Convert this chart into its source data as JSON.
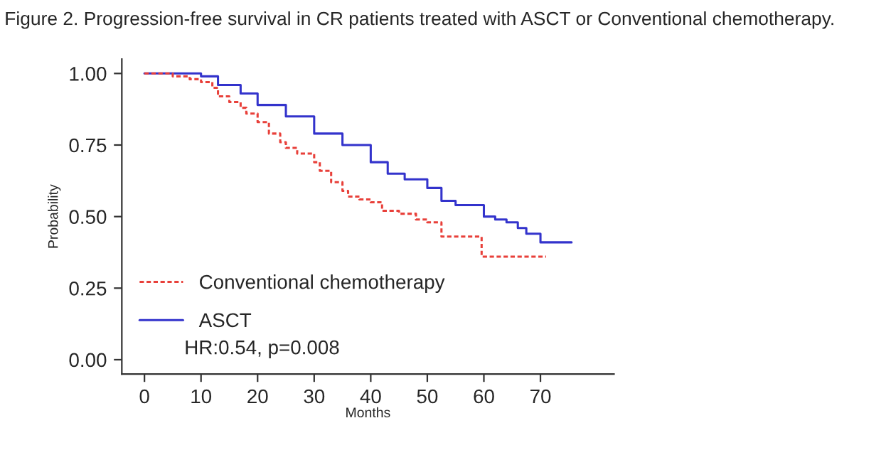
{
  "chart_data": {
    "type": "step",
    "title": "Figure 2. Progression-free survival in CR patients treated with ASCT or Conventional chemotherapy.",
    "xlabel": "Months",
    "ylabel": "Probability",
    "series": [
      {
        "name": "Conventional chemotherapy",
        "color": "#e8403a",
        "line_style": "dashed",
        "x": [
          0,
          5,
          8,
          10,
          12,
          13,
          15,
          17,
          18,
          20,
          22,
          24,
          25,
          27,
          30,
          31,
          33,
          35,
          36,
          38,
          40,
          42,
          45,
          48,
          50,
          52.5,
          59.6,
          71
        ],
        "values": [
          1.0,
          0.99,
          0.98,
          0.97,
          0.95,
          0.92,
          0.9,
          0.88,
          0.86,
          0.83,
          0.79,
          0.76,
          0.74,
          0.72,
          0.69,
          0.66,
          0.62,
          0.59,
          0.57,
          0.56,
          0.55,
          0.52,
          0.51,
          0.49,
          0.48,
          0.43,
          0.36,
          0.36
        ]
      },
      {
        "name": "ASCT",
        "color": "#3333cc",
        "line_style": "solid",
        "x": [
          0,
          7,
          10,
          13,
          17,
          20,
          25,
          30,
          35,
          40,
          43,
          46,
          50,
          52.5,
          55,
          60,
          62,
          64,
          66,
          67.5,
          70,
          75.5
        ],
        "values": [
          1.0,
          1.0,
          0.99,
          0.96,
          0.93,
          0.89,
          0.85,
          0.79,
          0.75,
          0.69,
          0.65,
          0.63,
          0.6,
          0.555,
          0.54,
          0.5,
          0.49,
          0.48,
          0.46,
          0.44,
          0.41,
          0.41
        ]
      }
    ],
    "xlim": [
      -4,
      83
    ],
    "xticks": [
      0,
      10,
      20,
      30,
      40,
      50,
      60,
      70
    ],
    "ylim": [
      -0.05,
      1.05
    ],
    "yticks": [
      {
        "value": 0,
        "label": "0.00"
      },
      {
        "value": 0.25,
        "label": "0.25"
      },
      {
        "value": 0.5,
        "label": "0.50"
      },
      {
        "value": 0.75,
        "label": "0.75"
      },
      {
        "value": 1,
        "label": "1.00"
      }
    ],
    "legend": "bottom left",
    "grid": false,
    "annotations": [
      "HR:0.54, p=0.008"
    ]
  }
}
